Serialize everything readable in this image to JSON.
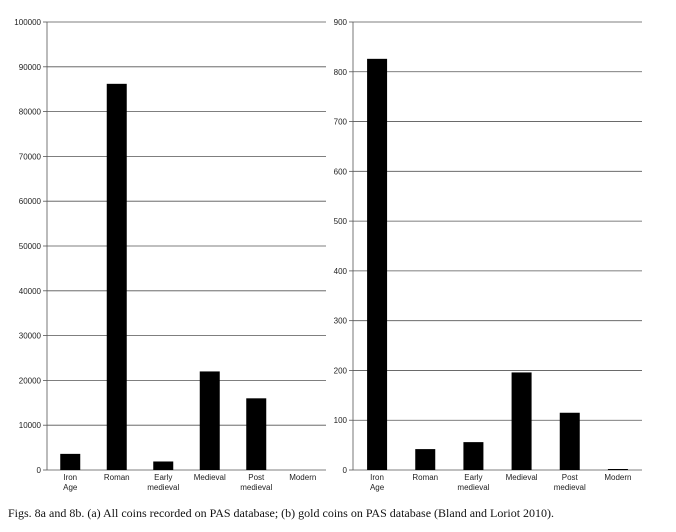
{
  "chart_data": [
    {
      "type": "bar",
      "categories": [
        "Iron Age",
        "Roman",
        "Early medieval",
        "Medieval",
        "Post medieval",
        "Modern"
      ],
      "values": [
        3600,
        86200,
        1900,
        22000,
        16000,
        0
      ],
      "ylim": [
        0,
        100000
      ],
      "yticks": [
        0,
        10000,
        20000,
        30000,
        40000,
        50000,
        60000,
        70000,
        80000,
        90000,
        100000
      ],
      "grid": true,
      "bar_color": "#000000"
    },
    {
      "type": "bar",
      "categories": [
        "Iron Age",
        "Roman",
        "Early medieval",
        "Medieval",
        "Post medieval",
        "Modern"
      ],
      "values": [
        826,
        42,
        56,
        196,
        115,
        2
      ],
      "ylim": [
        0,
        900
      ],
      "yticks": [
        0,
        100,
        200,
        300,
        400,
        500,
        600,
        700,
        800,
        900
      ],
      "grid": true,
      "bar_color": "#000000"
    }
  ],
  "caption": "Figs. 8a and 8b.   (a) All coins recorded on PAS database; (b) gold coins on PAS database (Bland and Loriot 2010)."
}
